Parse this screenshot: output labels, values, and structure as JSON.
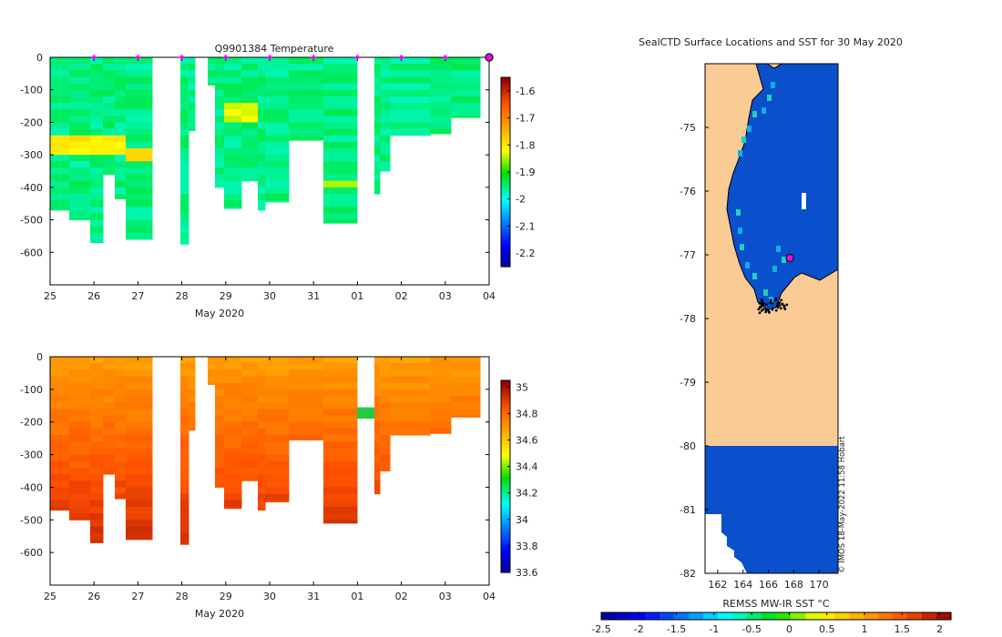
{
  "chart_data": [
    {
      "type": "heatmap",
      "title": "Q9901384  Temperature",
      "xlabel": "May 2020",
      "xticks": [
        "25",
        "26",
        "27",
        "28",
        "29",
        "30",
        "31",
        "01",
        "02",
        "03",
        "04"
      ],
      "yticks": [
        "0",
        "-100",
        "-200",
        "-300",
        "-400",
        "-500",
        "-600"
      ],
      "ylim": [
        -700,
        0
      ],
      "colorbar": {
        "ticks": [
          "-1.6",
          "-1.7",
          "-1.8",
          "-1.9",
          "-2",
          "-2.1",
          "-2.2"
        ],
        "range": [
          -2.25,
          -1.55
        ]
      },
      "surface_markers": [
        "26",
        "27",
        "28",
        "29",
        "30",
        "31",
        "01",
        "02",
        "03"
      ],
      "profile_bottom_depths": [
        470,
        500,
        570,
        560,
        575,
        470,
        445,
        510,
        415,
        235,
        185
      ]
    },
    {
      "type": "heatmap",
      "title": "",
      "xlabel": "May 2020",
      "xticks": [
        "25",
        "26",
        "27",
        "28",
        "29",
        "30",
        "31",
        "01",
        "02",
        "03",
        "04"
      ],
      "yticks": [
        "0",
        "-100",
        "-200",
        "-300",
        "-400",
        "-500",
        "-600"
      ],
      "ylim": [
        -700,
        0
      ],
      "colorbar": {
        "ticks": [
          "35",
          "34.8",
          "34.6",
          "34.4",
          "34.2",
          "34",
          "33.8",
          "33.6"
        ],
        "range": [
          33.6,
          35.05
        ]
      }
    },
    {
      "type": "heatmap",
      "title": "SealCTD Surface Locations and SST for 30 May 2020",
      "xticks": [
        "162",
        "164",
        "166",
        "168",
        "170"
      ],
      "yticks": [
        "-75",
        "-76",
        "-77",
        "-78",
        "-79",
        "-80",
        "-81",
        "-82"
      ],
      "xlim": [
        161,
        171.5
      ],
      "ylim": [
        -82,
        -74
      ],
      "colorbar_label": "REMSS MW-IR SST °C",
      "colorbar_ticks": [
        "-2.5",
        "-2",
        "-1.5",
        "-1",
        "-0.5",
        "0",
        "0.5",
        "1",
        "1.5",
        "2"
      ],
      "highlight_location": {
        "lon": 167.7,
        "lat": -77.05
      }
    }
  ],
  "credit": "© IMOS 18-May-2022 11:58 Hobart",
  "colors": {
    "marker": "#ff00ff",
    "land": "#fbcb96",
    "ocean": "#0a4fcc"
  }
}
